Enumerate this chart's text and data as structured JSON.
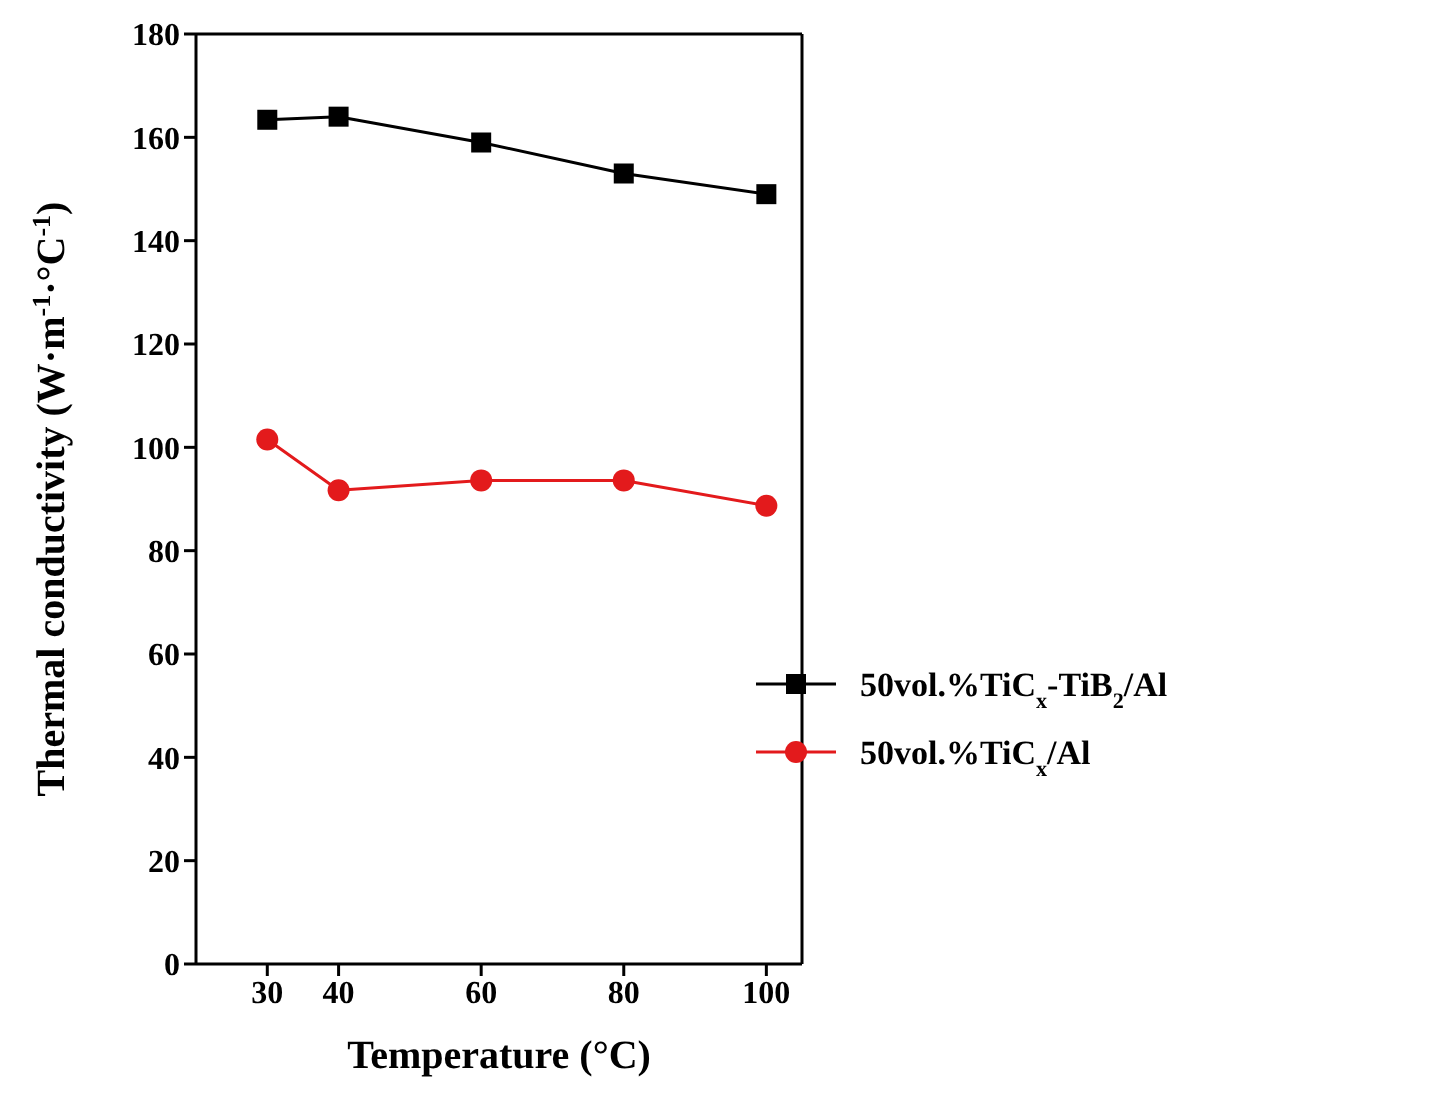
{
  "chart_data": {
    "type": "line",
    "xlabel": "Temperature (°C)",
    "ylabel": "Thermal conductivity (W·m$^{-1}$·°C$^{-1}$)",
    "x": [
      30,
      40,
      60,
      80,
      100
    ],
    "series": [
      {
        "name": "50vol.%TiC$_{x}$-TiB$_{2}$/Al",
        "color": "#000000",
        "marker": "square",
        "values": [
          163.4,
          164,
          159,
          153,
          149
        ]
      },
      {
        "name": "50vol.%TiC$_{x}$/Al",
        "color": "#e31a1c",
        "marker": "circle",
        "values": [
          101.5,
          91.7,
          93.6,
          93.6,
          88.7
        ]
      }
    ],
    "xlim": [
      20,
      105
    ],
    "xticks": [
      30,
      40,
      60,
      80,
      100
    ],
    "ylim": [
      0,
      180
    ],
    "yticks": [
      0,
      20,
      40,
      60,
      80,
      100,
      120,
      140,
      160,
      180
    ],
    "legend": "right",
    "grid": false,
    "line_style": "solid"
  }
}
